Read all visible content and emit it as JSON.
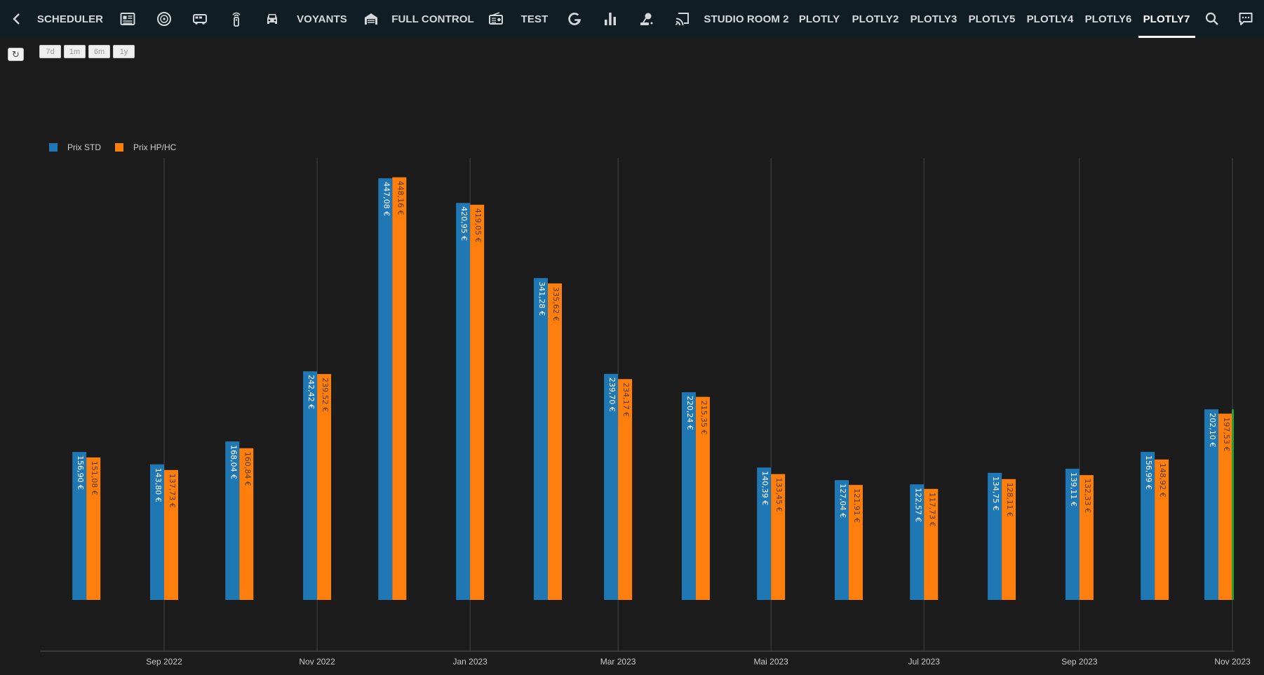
{
  "topbar": {
    "back_icon": "chevron-left-icon",
    "tabs": [
      {
        "label": "SCHEDULER"
      },
      {
        "icon": "newspaper-icon"
      },
      {
        "icon": "vinyl-icon"
      },
      {
        "icon": "campervan-icon"
      },
      {
        "icon": "remote-control-icon"
      },
      {
        "icon": "car-icon"
      },
      {
        "label": "VOYANTS"
      },
      {
        "icon": "garage-icon"
      },
      {
        "label": "FULL CONTROL"
      },
      {
        "icon": "radio-icon"
      },
      {
        "label": "TEST"
      },
      {
        "icon": "google-icon"
      },
      {
        "icon": "bar-chart-icon"
      },
      {
        "icon": "robot-vacuum-icon"
      },
      {
        "icon": "cast-icon"
      },
      {
        "label": "STUDIO ROOM 2"
      },
      {
        "label": "PLOTLY"
      },
      {
        "label": "PLOTLY2"
      },
      {
        "label": "PLOTLY3"
      },
      {
        "label": "PLOTLY5"
      },
      {
        "label": "PLOTLY4"
      },
      {
        "label": "PLOTLY6"
      },
      {
        "label": "PLOTLY7",
        "active": true
      }
    ],
    "search_icon": "search-icon",
    "assist_icon": "chat-dots-icon"
  },
  "controls": {
    "refresh_label": "↻",
    "ranges": [
      "7d",
      "1m",
      "6m",
      "1y"
    ]
  },
  "colors": {
    "background": "#1c1c1c",
    "topbar": "#101e24",
    "series_std": "#1f77b4",
    "series_hphc": "#ff7f0e",
    "now_marker": "#2ca02c"
  },
  "chart_data": {
    "type": "bar",
    "x": [
      "2022-08",
      "2022-09",
      "2022-10",
      "2022-11",
      "2022-12",
      "2023-01",
      "2023-02",
      "2023-03",
      "2023-04",
      "2023-05",
      "2023-06",
      "2023-07",
      "2023-08",
      "2023-09",
      "2023-10",
      "2023-11"
    ],
    "series": [
      {
        "name": "Prix STD",
        "values": [
          156.9,
          143.8,
          168.04,
          242.42,
          447.08,
          420.95,
          341.28,
          239.7,
          220.24,
          140.39,
          127.04,
          122.57,
          134.75,
          139.11,
          156.99,
          202.1
        ],
        "labels": [
          "156,90 €",
          "143,80 €",
          "168,04 €",
          "242,42 €",
          "447,08 €",
          "420,95 €",
          "341,28 €",
          "239,70 €",
          "220,24 €",
          "140,39 €",
          "127,04 €",
          "122,57 €",
          "134,75 €",
          "139,11 €",
          "156,99 €",
          "202,10 €"
        ]
      },
      {
        "name": "Prix HP/HC",
        "values": [
          151.08,
          137.73,
          160.84,
          239.52,
          448.16,
          419.05,
          335.62,
          234.17,
          215.35,
          133.45,
          121.91,
          117.73,
          128.11,
          132.33,
          148.92,
          197.53
        ],
        "labels": [
          "151,08 €",
          "137,73 €",
          "160,84 €",
          "239,52 €",
          "448,16 €",
          "419,05 €",
          "335,62 €",
          "234,17 €",
          "215,35 €",
          "133,45 €",
          "121,91 €",
          "117,73 €",
          "128,11 €",
          "132,33 €",
          "148,92 €",
          "197,53 €"
        ]
      }
    ],
    "x_tick_labels": [
      "Sep 2022",
      "Nov 2022",
      "Jan 2023",
      "Mar 2023",
      "Mai 2023",
      "Jul 2023",
      "Sep 2023",
      "Nov 2023"
    ],
    "xlabel": "",
    "ylabel": "",
    "ylim": [
      0,
      500
    ],
    "grid": "vertical",
    "legend": "top-left",
    "current_marker_x": "2023-11"
  }
}
